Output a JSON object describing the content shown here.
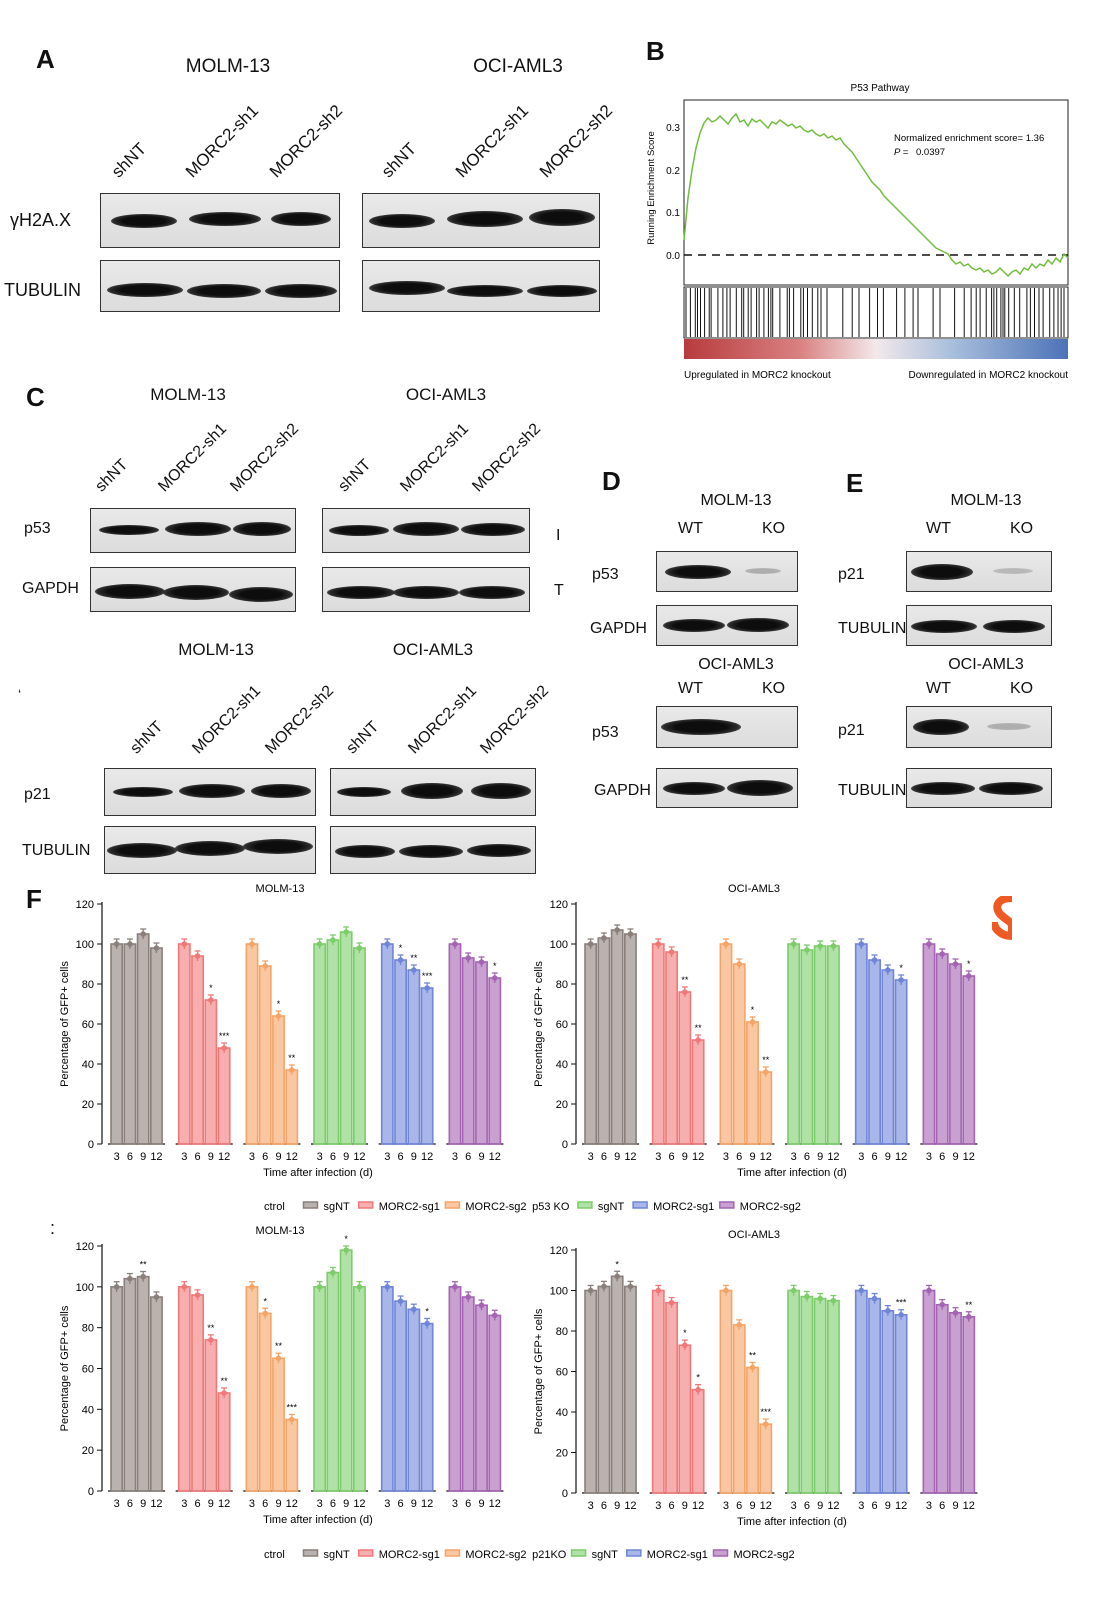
{
  "panels": {
    "A": {
      "letter": "A",
      "cells": [
        "MOLM-13",
        "OCI-AML3"
      ],
      "lanes": [
        "shNT",
        "MORC2-sh1",
        "MORC2-sh2"
      ],
      "rows": [
        "γH2A.X",
        "TUBULIN"
      ]
    },
    "B": {
      "letter": "B",
      "title": "P53 Pathway",
      "ylabel": "Running Enrichment Score",
      "ticks": [
        "0.3",
        "0.2",
        "0.1",
        "0.0"
      ],
      "nes": "Normalized enrichment score= 1.36",
      "p_label": "P =",
      "p_value": "0.0397",
      "left_label": "Upregulated in MORC2 knockout",
      "right_label": "Downregulated in MORC2 knockout"
    },
    "C": {
      "letter": "C",
      "cells": [
        "MOLM-13",
        "OCI-AML3"
      ],
      "lanes": [
        "shNT",
        "MORC2-sh1",
        "MORC2-sh2"
      ],
      "rows_top": [
        "p53",
        "GAPDH"
      ],
      "rows_bottom": [
        "p21",
        "TUBULIN"
      ],
      "fragments": [
        "I",
        "T",
        "‘"
      ]
    },
    "D": {
      "letter": "D",
      "cells": [
        "MOLM-13",
        "OCI-AML3"
      ],
      "lanes": [
        "WT",
        "KO"
      ],
      "rows": [
        "p53",
        "GAPDH"
      ]
    },
    "E": {
      "letter": "E",
      "cells": [
        "MOLM-13",
        "OCI-AML3"
      ],
      "lanes": [
        "WT",
        "KO"
      ],
      "rows": [
        "p21",
        "TUBULIN"
      ]
    },
    "F": {
      "letter": "F",
      "colon": ":"
    }
  },
  "chart_data": [
    {
      "type": "bar",
      "title": "MOLM-13",
      "xlabel": "Time after infection (d)",
      "ylabel": "Percentage of GFP+ cells",
      "ylim": [
        0,
        120
      ],
      "yticks": [
        0,
        20,
        40,
        60,
        80,
        100,
        120
      ],
      "categories": [
        "3",
        "6",
        "9",
        "12"
      ],
      "series": [
        {
          "name": "sgNT",
          "group": "ctrol",
          "color": "#8a7f7a",
          "values": [
            100,
            100,
            105,
            98
          ],
          "sig": [
            "",
            "",
            "",
            ""
          ]
        },
        {
          "name": "MORC2-sg1",
          "group": "ctrol",
          "color": "#f07878",
          "values": [
            100,
            94,
            72,
            48
          ],
          "sig": [
            "",
            "",
            "*",
            "***"
          ]
        },
        {
          "name": "MORC2-sg2",
          "group": "ctrol",
          "color": "#f5a466",
          "values": [
            100,
            89,
            64,
            37
          ],
          "sig": [
            "",
            "",
            "*",
            "**"
          ]
        },
        {
          "name": "sgNT",
          "group": "p53 KO",
          "color": "#7ccd6a",
          "values": [
            100,
            102,
            106,
            98
          ],
          "sig": [
            "",
            "",
            "",
            ""
          ]
        },
        {
          "name": "MORC2-sg1",
          "group": "p53 KO",
          "color": "#6f85d8",
          "values": [
            100,
            92,
            87,
            78
          ],
          "sig": [
            "",
            "*",
            "**",
            "***"
          ]
        },
        {
          "name": "MORC2-sg2",
          "group": "p53 KO",
          "color": "#a463b3",
          "values": [
            100,
            93,
            91,
            83
          ],
          "sig": [
            "",
            "",
            "",
            "*"
          ]
        }
      ]
    },
    {
      "type": "bar",
      "title": "OCI-AML3",
      "xlabel": "Time after infection (d)",
      "ylabel": "Percentage of GFP+ cells",
      "ylim": [
        0,
        120
      ],
      "yticks": [
        0,
        20,
        40,
        60,
        80,
        100,
        120
      ],
      "categories": [
        "3",
        "6",
        "9",
        "12"
      ],
      "series": [
        {
          "name": "sgNT",
          "group": "ctrol",
          "color": "#8a7f7a",
          "values": [
            100,
            103,
            107,
            105
          ],
          "sig": [
            "",
            "",
            "",
            ""
          ]
        },
        {
          "name": "MORC2-sg1",
          "group": "ctrol",
          "color": "#f07878",
          "values": [
            100,
            96,
            76,
            52
          ],
          "sig": [
            "",
            "",
            "**",
            "**"
          ]
        },
        {
          "name": "MORC2-sg2",
          "group": "ctrol",
          "color": "#f5a466",
          "values": [
            100,
            90,
            61,
            36
          ],
          "sig": [
            "",
            "",
            "*",
            "**"
          ]
        },
        {
          "name": "sgNT",
          "group": "p53 KO",
          "color": "#7ccd6a",
          "values": [
            100,
            97,
            99,
            99
          ],
          "sig": [
            "",
            "",
            "",
            ""
          ]
        },
        {
          "name": "MORC2-sg1",
          "group": "p53 KO",
          "color": "#6f85d8",
          "values": [
            100,
            92,
            87,
            82
          ],
          "sig": [
            "",
            "",
            "",
            "*"
          ]
        },
        {
          "name": "MORC2-sg2",
          "group": "p53 KO",
          "color": "#a463b3",
          "values": [
            100,
            95,
            90,
            84
          ],
          "sig": [
            "",
            "",
            "",
            "*"
          ]
        }
      ]
    },
    {
      "type": "bar",
      "title": "MOLM-13",
      "xlabel": "Time after infection (d)",
      "ylabel": "Percentage of GFP+ cells",
      "ylim": [
        0,
        120
      ],
      "yticks": [
        0,
        20,
        40,
        60,
        80,
        100,
        120
      ],
      "categories": [
        "3",
        "6",
        "9",
        "12"
      ],
      "series": [
        {
          "name": "sgNT",
          "group": "ctrol",
          "color": "#8a7f7a",
          "values": [
            100,
            104,
            105,
            95
          ],
          "sig": [
            "",
            "",
            "**",
            ""
          ]
        },
        {
          "name": "MORC2-sg1",
          "group": "ctrol",
          "color": "#f07878",
          "values": [
            100,
            96,
            74,
            48
          ],
          "sig": [
            "",
            "",
            "**",
            "**"
          ]
        },
        {
          "name": "MORC2-sg2",
          "group": "ctrol",
          "color": "#f5a466",
          "values": [
            100,
            87,
            65,
            35
          ],
          "sig": [
            "",
            "*",
            "**",
            "***"
          ]
        },
        {
          "name": "sgNT",
          "group": "p21KO",
          "color": "#7ccd6a",
          "values": [
            100,
            107,
            118,
            100
          ],
          "sig": [
            "",
            "",
            "*",
            ""
          ]
        },
        {
          "name": "MORC2-sg1",
          "group": "p21KO",
          "color": "#6f85d8",
          "values": [
            100,
            93,
            89,
            82
          ],
          "sig": [
            "",
            "",
            "",
            "*"
          ]
        },
        {
          "name": "MORC2-sg2",
          "group": "p21KO",
          "color": "#a463b3",
          "values": [
            100,
            95,
            91,
            86
          ],
          "sig": [
            "",
            "",
            "",
            ""
          ]
        }
      ]
    },
    {
      "type": "bar",
      "title": "OCI-AML3",
      "xlabel": "Time after infection (d)",
      "ylabel": "Percentage of GFP+ cells",
      "ylim": [
        0,
        120
      ],
      "yticks": [
        0,
        20,
        40,
        60,
        80,
        100,
        120
      ],
      "categories": [
        "3",
        "6",
        "9",
        "12"
      ],
      "series": [
        {
          "name": "sgNT",
          "group": "ctrol",
          "color": "#8a7f7a",
          "values": [
            100,
            102,
            107,
            102
          ],
          "sig": [
            "",
            "",
            "*",
            ""
          ]
        },
        {
          "name": "MORC2-sg1",
          "group": "ctrol",
          "color": "#f07878",
          "values": [
            100,
            94,
            73,
            51
          ],
          "sig": [
            "",
            "",
            "*",
            "*"
          ]
        },
        {
          "name": "MORC2-sg2",
          "group": "ctrol",
          "color": "#f5a466",
          "values": [
            100,
            83,
            62,
            34
          ],
          "sig": [
            "",
            "",
            "**",
            "***"
          ]
        },
        {
          "name": "sgNT",
          "group": "p21KO",
          "color": "#7ccd6a",
          "values": [
            100,
            97,
            96,
            95
          ],
          "sig": [
            "",
            "",
            "",
            ""
          ]
        },
        {
          "name": "MORC2-sg1",
          "group": "p21KO",
          "color": "#6f85d8",
          "values": [
            100,
            96,
            90,
            88
          ],
          "sig": [
            "",
            "",
            "",
            "***"
          ]
        },
        {
          "name": "MORC2-sg2",
          "group": "p21KO",
          "color": "#a463b3",
          "values": [
            100,
            93,
            89,
            87
          ],
          "sig": [
            "",
            "",
            "",
            "**"
          ]
        }
      ]
    }
  ],
  "legends": [
    {
      "groups": [
        {
          "label": "ctrol",
          "items": [
            {
              "name": "sgNT",
              "color": "#8a7f7a"
            },
            {
              "name": "MORC2-sg1",
              "color": "#f07878"
            },
            {
              "name": "MORC2-sg2",
              "color": "#f5a466"
            }
          ]
        },
        {
          "label": "p53 KO",
          "items": [
            {
              "name": "sgNT",
              "color": "#7ccd6a"
            },
            {
              "name": "MORC2-sg1",
              "color": "#6f85d8"
            },
            {
              "name": "MORC2-sg2",
              "color": "#a463b3"
            }
          ]
        }
      ]
    },
    {
      "groups": [
        {
          "label": "ctrol",
          "items": [
            {
              "name": "sgNT",
              "color": "#8a7f7a"
            },
            {
              "name": "MORC2-sg1",
              "color": "#f07878"
            },
            {
              "name": "MORC2-sg2",
              "color": "#f5a466"
            }
          ]
        },
        {
          "label": "p21KO",
          "items": [
            {
              "name": "sgNT",
              "color": "#7ccd6a"
            },
            {
              "name": "MORC2-sg1",
              "color": "#6f85d8"
            },
            {
              "name": "MORC2-sg2",
              "color": "#a463b3"
            }
          ]
        }
      ]
    }
  ]
}
